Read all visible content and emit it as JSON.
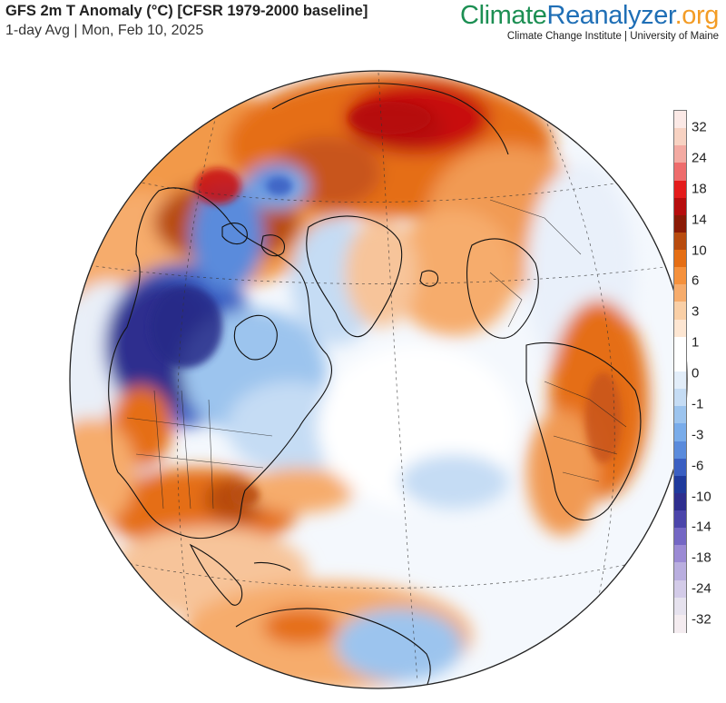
{
  "header": {
    "title": "GFS 2m T Anomaly (°C) [CFSR 1979-2000 baseline]",
    "subtitle": "1-day Avg | Mon, Feb 10, 2025"
  },
  "brand": {
    "name_part1": "Climate",
    "name_part2": "Reanalyzer",
    "name_part3": ".org",
    "tagline": "Climate Change Institute | University of Maine",
    "colors": {
      "climate": "#1c8f53",
      "reanalyzer": "#1f6fb6",
      "org": "#f39c25"
    }
  },
  "legend": {
    "tick_labels": [
      "32",
      "24",
      "18",
      "14",
      "10",
      "6",
      "3",
      "1",
      "0",
      "-1",
      "-3",
      "-6",
      "-10",
      "-14",
      "-18",
      "-24",
      "-32"
    ],
    "colors": [
      "#fbe9e6",
      "#f7d2c2",
      "#f3aaa2",
      "#ee6c6c",
      "#e41b1b",
      "#b60d0d",
      "#8a1a06",
      "#b84b0e",
      "#e56e14",
      "#f5913c",
      "#f6ac6c",
      "#f9cfa6",
      "#fde6d2",
      "#ffffff",
      "#ffffff",
      "#e2edf9",
      "#c5dcf4",
      "#9cc4ee",
      "#79acea",
      "#5a8bdc",
      "#3a5fc2",
      "#1f3a9c",
      "#2e2e8e",
      "#4b45aa",
      "#7467c4",
      "#9b8ad4",
      "#b9aedf",
      "#d3cbe8",
      "#e6e2ee",
      "#f4ecf0"
    ]
  },
  "map": {
    "projection": "orthographic globe, North Atlantic / Arctic view",
    "colors": {
      "warm_light": "#f6ac6c",
      "warm_mid": "#e56e14",
      "warm_strong": "#b84b0e",
      "hot": "#c8110f",
      "cool_light": "#c5dcf4",
      "cool_mid": "#79acea",
      "cold": "#3a5fc2",
      "very_cold": "#2e2e8e"
    }
  }
}
